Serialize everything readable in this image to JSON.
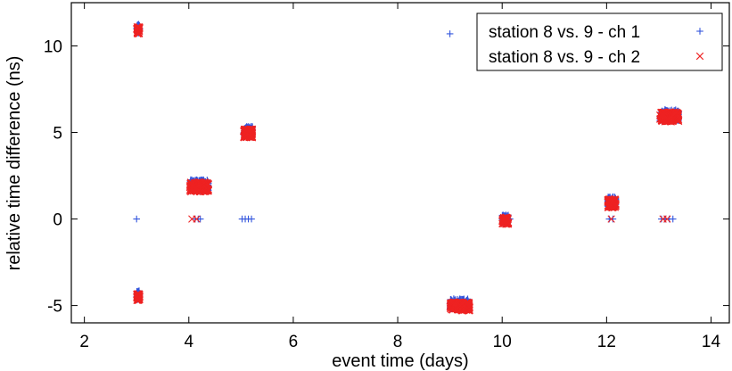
{
  "chart_data": {
    "type": "scatter",
    "xlabel": "event time (days)",
    "ylabel": "relative time difference (ns)",
    "xlim": [
      1.75,
      14.35
    ],
    "ylim": [
      -6.0,
      12.5
    ],
    "xticks": [
      2,
      4,
      6,
      8,
      10,
      12,
      14
    ],
    "yticks": [
      -5,
      0,
      5,
      10
    ],
    "grid": false,
    "legend_position": "top-right",
    "series": [
      {
        "name": "station 8 vs. 9 - ch 1",
        "marker": "plus",
        "color": "#3355dd",
        "clusters": [
          {
            "x_start": 3.0,
            "x_end": 3.06,
            "y_center": 11.0,
            "y_spread": 0.25,
            "count": 40
          },
          {
            "x_start": 3.0,
            "x_end": 3.06,
            "y_center": -4.4,
            "y_spread": 0.25,
            "count": 40
          },
          {
            "x_start": 4.02,
            "x_end": 4.38,
            "y_center": 1.95,
            "y_spread": 0.32,
            "count": 160
          },
          {
            "x_start": 5.05,
            "x_end": 5.22,
            "y_center": 5.05,
            "y_spread": 0.3,
            "count": 90
          },
          {
            "x_start": 9.0,
            "x_end": 9.35,
            "y_center": -4.9,
            "y_spread": 0.3,
            "count": 160
          },
          {
            "x_start": 10.0,
            "x_end": 10.12,
            "y_center": 0.0,
            "y_spread": 0.25,
            "count": 60
          },
          {
            "x_start": 12.02,
            "x_end": 12.18,
            "y_center": 1.0,
            "y_spread": 0.3,
            "count": 80
          },
          {
            "x_start": 13.02,
            "x_end": 13.38,
            "y_center": 6.0,
            "y_spread": 0.32,
            "count": 160
          }
        ],
        "points": [
          {
            "x": 3.0,
            "y": 0.0
          },
          {
            "x": 4.12,
            "y": 0.0
          },
          {
            "x": 4.18,
            "y": 0.0
          },
          {
            "x": 4.22,
            "y": 0.0
          },
          {
            "x": 5.02,
            "y": 0.0
          },
          {
            "x": 5.08,
            "y": 0.0
          },
          {
            "x": 5.14,
            "y": 0.0
          },
          {
            "x": 5.2,
            "y": 0.0
          },
          {
            "x": 9.0,
            "y": 10.7
          },
          {
            "x": 10.15,
            "y": 0.0
          },
          {
            "x": 12.05,
            "y": 0.0
          },
          {
            "x": 12.12,
            "y": 0.0
          },
          {
            "x": 13.05,
            "y": 0.0
          },
          {
            "x": 13.12,
            "y": 0.0
          },
          {
            "x": 13.2,
            "y": 0.0
          },
          {
            "x": 13.27,
            "y": 0.0
          }
        ]
      },
      {
        "name": "station 8 vs. 9 - ch 2",
        "marker": "cross",
        "color": "#ee2222",
        "clusters": [
          {
            "x_start": 3.0,
            "x_end": 3.06,
            "y_center": 10.9,
            "y_spread": 0.2,
            "count": 40
          },
          {
            "x_start": 3.0,
            "x_end": 3.06,
            "y_center": -4.5,
            "y_spread": 0.2,
            "count": 40
          },
          {
            "x_start": 4.02,
            "x_end": 4.38,
            "y_center": 1.85,
            "y_spread": 0.28,
            "count": 200
          },
          {
            "x_start": 5.05,
            "x_end": 5.22,
            "y_center": 4.95,
            "y_spread": 0.25,
            "count": 110
          },
          {
            "x_start": 9.0,
            "x_end": 9.38,
            "y_center": -5.05,
            "y_spread": 0.25,
            "count": 200
          },
          {
            "x_start": 10.0,
            "x_end": 10.12,
            "y_center": -0.1,
            "y_spread": 0.2,
            "count": 70
          },
          {
            "x_start": 12.02,
            "x_end": 12.18,
            "y_center": 0.9,
            "y_spread": 0.25,
            "count": 100
          },
          {
            "x_start": 13.02,
            "x_end": 13.38,
            "y_center": 5.9,
            "y_spread": 0.28,
            "count": 200
          }
        ],
        "points": [
          {
            "x": 4.06,
            "y": 0.0
          },
          {
            "x": 4.15,
            "y": 0.0
          },
          {
            "x": 10.08,
            "y": 0.0
          },
          {
            "x": 12.09,
            "y": 0.0
          },
          {
            "x": 13.08,
            "y": 0.0
          },
          {
            "x": 13.16,
            "y": 0.0
          }
        ]
      }
    ]
  }
}
